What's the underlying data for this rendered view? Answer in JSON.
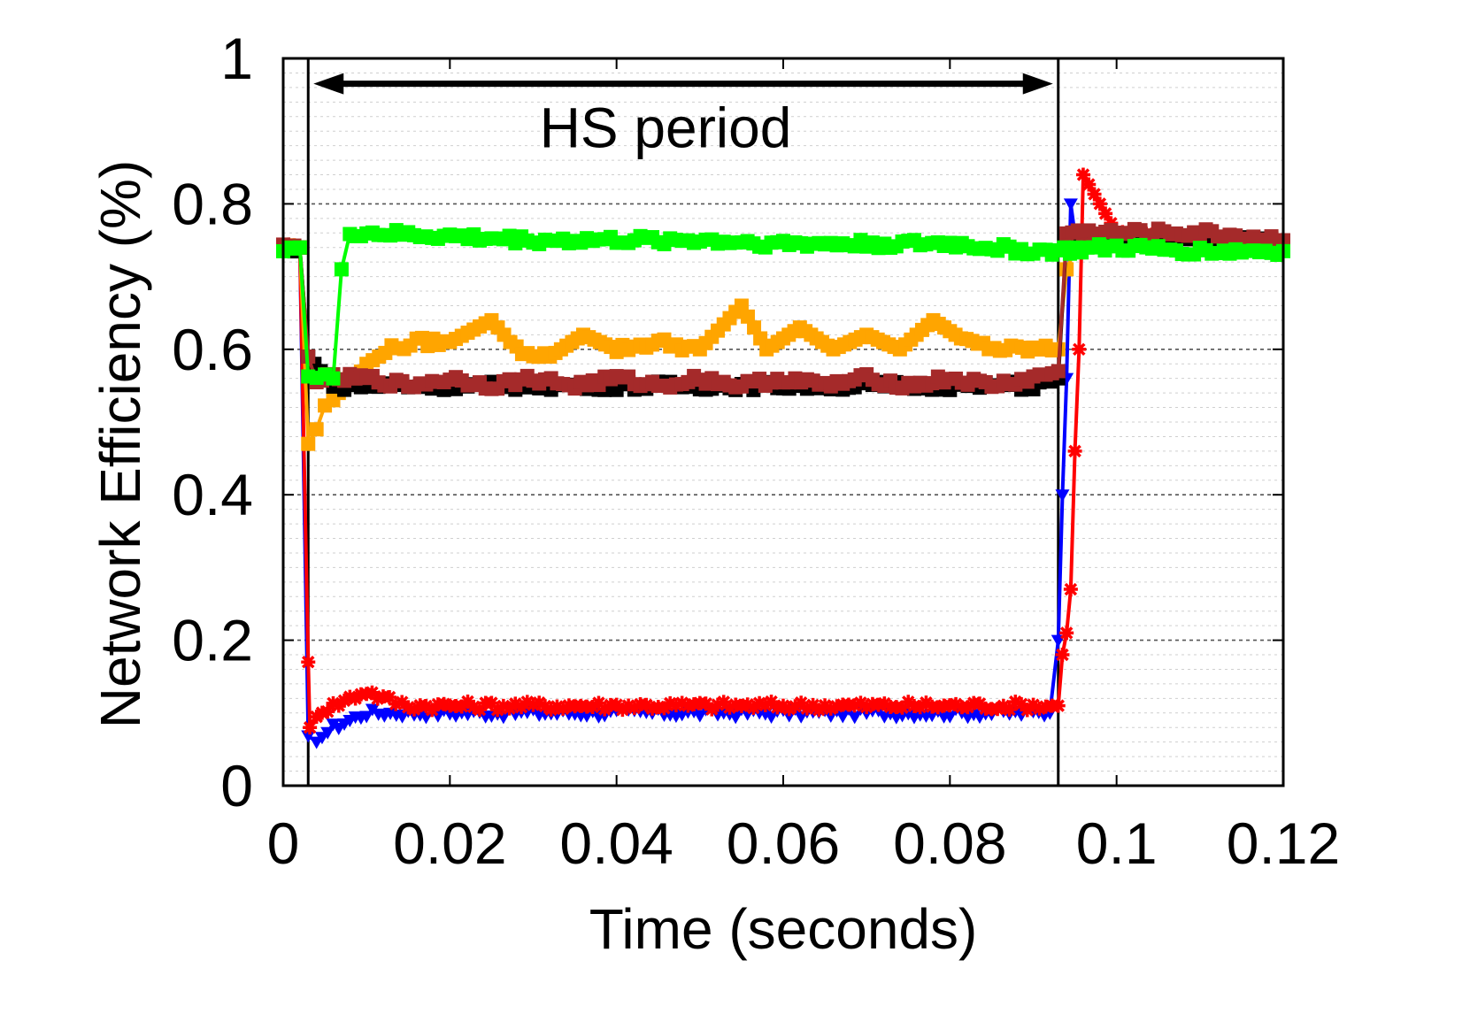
{
  "chart_data": {
    "type": "line",
    "title": "",
    "xlabel": "Time (seconds)",
    "ylabel": "Network Efficiency (%)",
    "xlim": [
      0,
      0.12
    ],
    "ylim": [
      0,
      1
    ],
    "x_ticks": [
      0,
      0.02,
      0.04,
      0.06,
      0.08,
      0.1,
      0.12
    ],
    "x_tick_labels": [
      "0",
      "0.02",
      "0.04",
      "0.06",
      "0.08",
      "0.1",
      "0.12"
    ],
    "y_ticks": [
      0,
      0.2,
      0.4,
      0.6,
      0.8,
      1
    ],
    "y_tick_labels": [
      "0",
      "0.2",
      "0.4",
      "0.6",
      "0.8",
      "1"
    ],
    "grid": true,
    "annotations": [
      {
        "text": "HS period",
        "x_start": 0.003,
        "x_end": 0.093,
        "y": 0.97
      }
    ],
    "vlines": [
      0.003,
      0.093
    ],
    "series": [
      {
        "name": "Blue",
        "color": "#0000ff",
        "marker": "triangle-down",
        "x": [
          0,
          0.002,
          0.003,
          0.004,
          0.006,
          0.008,
          0.01,
          0.015,
          0.02,
          0.03,
          0.04,
          0.05,
          0.06,
          0.07,
          0.08,
          0.09,
          0.092,
          0.093,
          0.0935,
          0.094,
          0.0945,
          0.095,
          0.096,
          0.1,
          0.11,
          0.12
        ],
        "y": [
          0.74,
          0.74,
          0.07,
          0.06,
          0.08,
          0.09,
          0.1,
          0.1,
          0.1,
          0.1,
          0.1,
          0.1,
          0.1,
          0.1,
          0.1,
          0.1,
          0.1,
          0.2,
          0.4,
          0.56,
          0.8,
          0.76,
          0.75,
          0.75,
          0.75,
          0.75
        ]
      },
      {
        "name": "Red",
        "color": "#ff0000",
        "marker": "asterisk",
        "x": [
          0,
          0.002,
          0.003,
          0.0032,
          0.004,
          0.006,
          0.008,
          0.01,
          0.012,
          0.015,
          0.02,
          0.03,
          0.04,
          0.05,
          0.06,
          0.07,
          0.08,
          0.09,
          0.093,
          0.0935,
          0.094,
          0.0945,
          0.095,
          0.0955,
          0.096,
          0.1,
          0.11,
          0.12
        ],
        "y": [
          0.74,
          0.74,
          0.17,
          0.08,
          0.1,
          0.11,
          0.12,
          0.13,
          0.12,
          0.11,
          0.11,
          0.11,
          0.11,
          0.11,
          0.11,
          0.11,
          0.11,
          0.11,
          0.11,
          0.18,
          0.21,
          0.27,
          0.46,
          0.6,
          0.84,
          0.76,
          0.75,
          0.75
        ]
      },
      {
        "name": "Orange",
        "color": "#ffa500",
        "marker": "square",
        "x": [
          0,
          0.002,
          0.003,
          0.004,
          0.005,
          0.006,
          0.008,
          0.01,
          0.013,
          0.016,
          0.02,
          0.025,
          0.028,
          0.032,
          0.036,
          0.04,
          0.045,
          0.05,
          0.055,
          0.058,
          0.062,
          0.066,
          0.07,
          0.074,
          0.078,
          0.082,
          0.086,
          0.09,
          0.093,
          0.094,
          0.095,
          0.1,
          0.11,
          0.12
        ],
        "y": [
          0.74,
          0.74,
          0.47,
          0.49,
          0.52,
          0.53,
          0.56,
          0.58,
          0.6,
          0.61,
          0.61,
          0.64,
          0.6,
          0.59,
          0.62,
          0.6,
          0.61,
          0.6,
          0.66,
          0.6,
          0.63,
          0.6,
          0.62,
          0.6,
          0.64,
          0.61,
          0.6,
          0.6,
          0.6,
          0.71,
          0.74,
          0.75,
          0.75,
          0.75
        ]
      },
      {
        "name": "Black",
        "color": "#000000",
        "marker": "square",
        "x": [
          0,
          0.002,
          0.003,
          0.006,
          0.01,
          0.02,
          0.03,
          0.04,
          0.05,
          0.06,
          0.07,
          0.08,
          0.09,
          0.093,
          0.094,
          0.1,
          0.11,
          0.12
        ],
        "y": [
          0.74,
          0.74,
          0.59,
          0.55,
          0.55,
          0.55,
          0.55,
          0.55,
          0.55,
          0.55,
          0.55,
          0.55,
          0.55,
          0.56,
          0.75,
          0.75,
          0.75,
          0.75
        ]
      },
      {
        "name": "Brown",
        "color": "#a52a2a",
        "marker": "square",
        "x": [
          0,
          0.002,
          0.003,
          0.004,
          0.006,
          0.01,
          0.015,
          0.02,
          0.025,
          0.03,
          0.035,
          0.04,
          0.045,
          0.05,
          0.055,
          0.06,
          0.065,
          0.07,
          0.075,
          0.08,
          0.085,
          0.09,
          0.093,
          0.094,
          0.1,
          0.11,
          0.12
        ],
        "y": [
          0.74,
          0.74,
          0.59,
          0.56,
          0.56,
          0.56,
          0.55,
          0.56,
          0.55,
          0.56,
          0.55,
          0.56,
          0.55,
          0.56,
          0.55,
          0.56,
          0.55,
          0.56,
          0.55,
          0.56,
          0.55,
          0.56,
          0.57,
          0.76,
          0.76,
          0.76,
          0.75
        ]
      },
      {
        "name": "Green",
        "color": "#00ff00",
        "marker": "square",
        "x": [
          0,
          0.002,
          0.003,
          0.004,
          0.005,
          0.006,
          0.007,
          0.008,
          0.01,
          0.02,
          0.03,
          0.04,
          0.05,
          0.06,
          0.07,
          0.08,
          0.09,
          0.093,
          0.1,
          0.11,
          0.12
        ],
        "y": [
          0.74,
          0.74,
          0.56,
          0.56,
          0.56,
          0.56,
          0.71,
          0.76,
          0.76,
          0.755,
          0.75,
          0.75,
          0.75,
          0.745,
          0.745,
          0.745,
          0.735,
          0.735,
          0.74,
          0.735,
          0.735
        ]
      }
    ]
  }
}
